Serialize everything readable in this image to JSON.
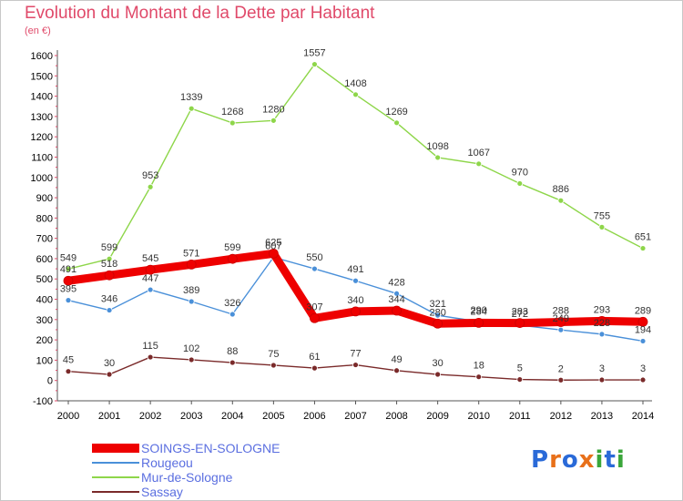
{
  "header": {
    "title": "Evolution du Montant de la Dette par Habitant",
    "subtitle": "(en €)"
  },
  "logo": {
    "text": "Proxiti",
    "letters": [
      "P",
      "r",
      "o",
      "x",
      "i",
      "t",
      "i"
    ],
    "colors": [
      "#2a6ad8",
      "#e8701a",
      "#2a6ad8",
      "#e8701a",
      "#3aa63a",
      "#2a6ad8",
      "#3aa63a"
    ]
  },
  "chart_data": {
    "type": "line",
    "x": [
      2000,
      2001,
      2002,
      2003,
      2004,
      2005,
      2006,
      2007,
      2008,
      2009,
      2010,
      2011,
      2012,
      2013,
      2014
    ],
    "ylim": [
      -100,
      1600
    ],
    "yticks": [
      -100,
      0,
      100,
      200,
      300,
      400,
      500,
      600,
      700,
      800,
      900,
      1000,
      1100,
      1200,
      1300,
      1400,
      1500,
      1600
    ],
    "grid": false,
    "legend_position": "bottom-left",
    "series": [
      {
        "name": "SOINGS-EN-SOLOGNE",
        "color": "#ee0000",
        "values": [
          491,
          518,
          545,
          571,
          599,
          625,
          307,
          340,
          344,
          280,
          284,
          283,
          288,
          293,
          289
        ]
      },
      {
        "name": "Rougeou",
        "color": "#4a90d9",
        "values": [
          395,
          346,
          447,
          389,
          326,
          607,
          550,
          491,
          428,
          321,
          290,
          272,
          249,
          228,
          194
        ]
      },
      {
        "name": "Mur-de-Sologne",
        "color": "#8ed64a",
        "values": [
          549,
          599,
          953,
          1339,
          1268,
          1280,
          1557,
          1408,
          1269,
          1098,
          1067,
          970,
          886,
          755,
          651
        ]
      },
      {
        "name": "Sassay",
        "color": "#7a2a2a",
        "values": [
          45,
          30,
          115,
          102,
          88,
          75,
          61,
          77,
          49,
          30,
          18,
          5,
          2,
          3,
          3
        ]
      }
    ]
  }
}
